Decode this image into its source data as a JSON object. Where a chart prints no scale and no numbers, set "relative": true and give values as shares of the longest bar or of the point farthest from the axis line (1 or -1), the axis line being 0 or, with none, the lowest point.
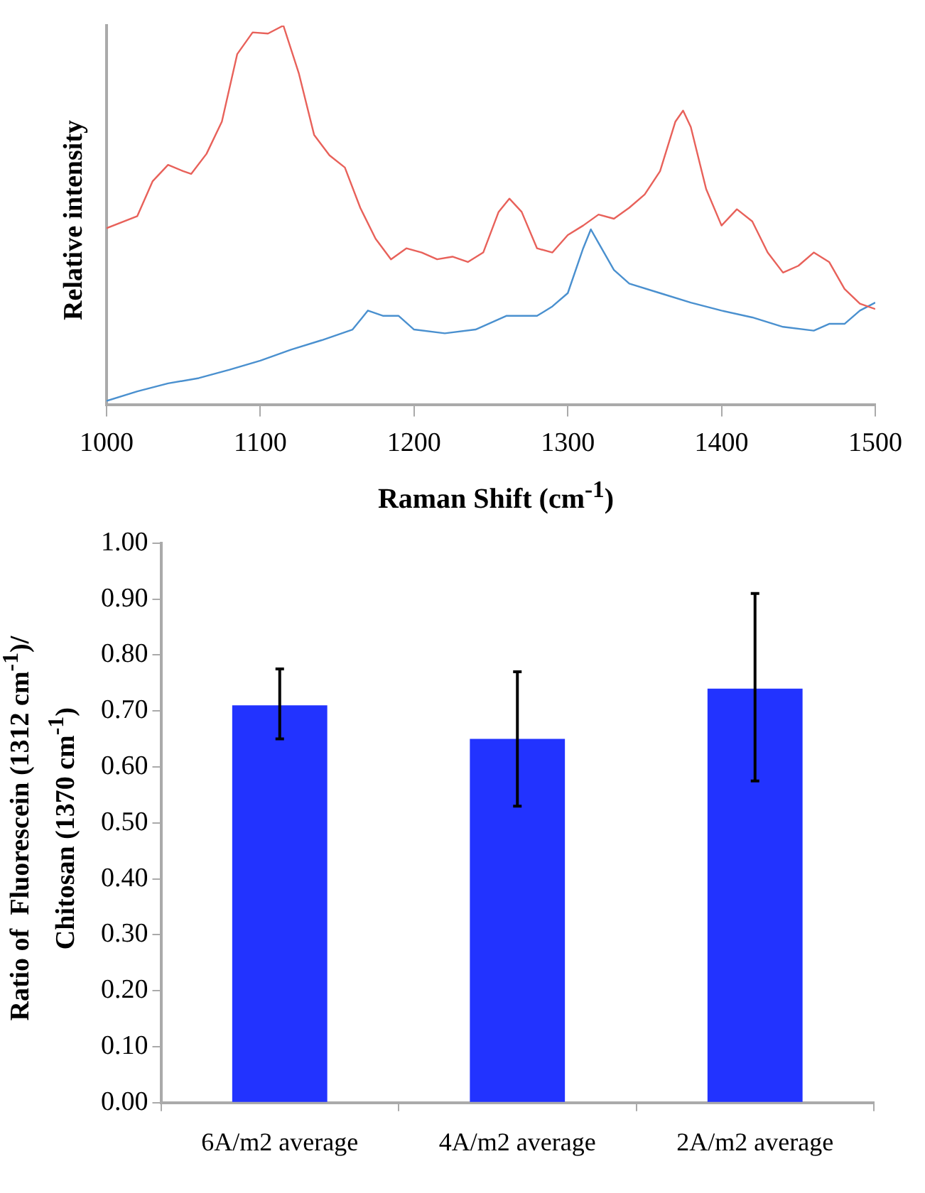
{
  "chart_data": [
    {
      "type": "line",
      "xlabel": "Raman Shift (cm$^{-1}$)",
      "ylabel": "Relative intensity",
      "relative": true,
      "xlim": [
        1000,
        1500
      ],
      "xticks": [
        1000,
        1100,
        1200,
        1300,
        1400,
        1500
      ],
      "grid": false,
      "legend": false,
      "marker": "none",
      "line_style": "solid",
      "series": [
        {
          "color": "#e8615a",
          "x": [
            1000,
            1020,
            1030,
            1040,
            1050,
            1055,
            1065,
            1075,
            1085,
            1095,
            1105,
            1115,
            1125,
            1135,
            1145,
            1155,
            1165,
            1175,
            1185,
            1195,
            1205,
            1215,
            1225,
            1235,
            1245,
            1255,
            1262,
            1270,
            1280,
            1290,
            1300,
            1310,
            1320,
            1330,
            1340,
            1350,
            1360,
            1370,
            1375,
            1380,
            1390,
            1400,
            1410,
            1420,
            1430,
            1440,
            1450,
            1460,
            1470,
            1480,
            1490,
            1500
          ],
          "values": [
            0.466,
            0.498,
            0.59,
            0.633,
            0.616,
            0.609,
            0.662,
            0.747,
            0.925,
            0.982,
            0.979,
            1,
            0.875,
            0.712,
            0.658,
            0.626,
            0.52,
            0.438,
            0.384,
            0.413,
            0.402,
            0.384,
            0.391,
            0.377,
            0.402,
            0.509,
            0.544,
            0.509,
            0.413,
            0.402,
            0.448,
            0.473,
            0.502,
            0.491,
            0.52,
            0.555,
            0.616,
            0.747,
            0.776,
            0.733,
            0.569,
            0.473,
            0.516,
            0.484,
            0.402,
            0.349,
            0.367,
            0.402,
            0.377,
            0.306,
            0.267,
            0.253
          ]
        },
        {
          "color": "#4a90cf",
          "x": [
            1000,
            1020,
            1040,
            1060,
            1080,
            1100,
            1120,
            1140,
            1160,
            1170,
            1180,
            1190,
            1200,
            1220,
            1240,
            1260,
            1280,
            1290,
            1300,
            1310,
            1315,
            1320,
            1330,
            1340,
            1360,
            1380,
            1400,
            1420,
            1440,
            1460,
            1470,
            1480,
            1490,
            1500
          ],
          "values": [
            0.011,
            0.036,
            0.057,
            0.071,
            0.093,
            0.117,
            0.146,
            0.171,
            0.199,
            0.249,
            0.235,
            0.235,
            0.199,
            0.189,
            0.199,
            0.235,
            0.235,
            0.26,
            0.295,
            0.413,
            0.463,
            0.427,
            0.356,
            0.32,
            0.295,
            0.27,
            0.249,
            0.231,
            0.206,
            0.196,
            0.214,
            0.214,
            0.249,
            0.27
          ]
        }
      ]
    },
    {
      "type": "bar",
      "ylabel": "Ratio of  Fluorescein (1312 cm$^{-1}$)/ Chitosan (1370 cm$^{-1}$)",
      "categories": [
        "6A/m2 average",
        "4A/m2 average",
        "2A/m2 average"
      ],
      "values": [
        0.71,
        0.65,
        0.74
      ],
      "errors": [
        [
          0.65,
          0.775
        ],
        [
          0.53,
          0.77
        ],
        [
          0.575,
          0.91
        ]
      ],
      "color": "#2233ff",
      "ylim": [
        0,
        1
      ],
      "yticks": [
        {
          "value": 0,
          "label": "0.00"
        },
        {
          "value": 0.1,
          "label": "0.10"
        },
        {
          "value": 0.2,
          "label": "0.20"
        },
        {
          "value": 0.3,
          "label": "0.30"
        },
        {
          "value": 0.4,
          "label": "0.40"
        },
        {
          "value": 0.5,
          "label": "0.50"
        },
        {
          "value": 0.6,
          "label": "0.60"
        },
        {
          "value": 0.7,
          "label": "0.70"
        },
        {
          "value": 0.8,
          "label": "0.80"
        },
        {
          "value": 0.9,
          "label": "0.90"
        },
        {
          "value": 1,
          "label": "1.00"
        }
      ],
      "grid": false,
      "legend": false
    }
  ]
}
